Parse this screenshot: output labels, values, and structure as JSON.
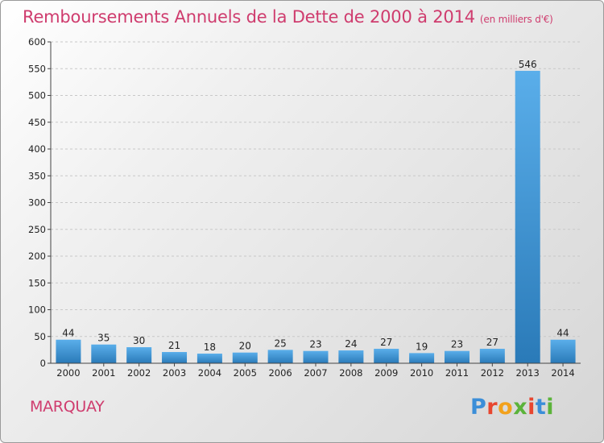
{
  "header": {
    "title": "Remboursements Annuels de la Dette de 2000 à 2014",
    "subtitle": "(en milliers d'€)"
  },
  "footer": {
    "commune": "MARQUAY",
    "logo": "Proxiti"
  },
  "colors": {
    "title": "#cf3c6e",
    "bar_top": "#5aaeea",
    "bar_bottom": "#2a7ab8",
    "grid": "#c8c8c8"
  },
  "chart_data": {
    "type": "bar",
    "categories": [
      "2000",
      "2001",
      "2002",
      "2003",
      "2004",
      "2005",
      "2006",
      "2007",
      "2008",
      "2009",
      "2010",
      "2011",
      "2012",
      "2013",
      "2014"
    ],
    "values": [
      44,
      35,
      30,
      21,
      18,
      20,
      25,
      23,
      24,
      27,
      19,
      23,
      27,
      546,
      44
    ],
    "data_labels": [
      "44",
      "35",
      "30",
      "21",
      "18",
      "20",
      "25",
      "23",
      "24",
      "27",
      "19",
      "23",
      "27",
      "546",
      "44"
    ],
    "title": "Remboursements Annuels de la Dette de 2000 à 2014",
    "xlabel": "",
    "ylabel": "",
    "ylim": [
      0,
      600
    ],
    "yticks": [
      0,
      50,
      100,
      150,
      200,
      250,
      300,
      350,
      400,
      450,
      500,
      550,
      600
    ],
    "grid": true,
    "legend": "none"
  }
}
